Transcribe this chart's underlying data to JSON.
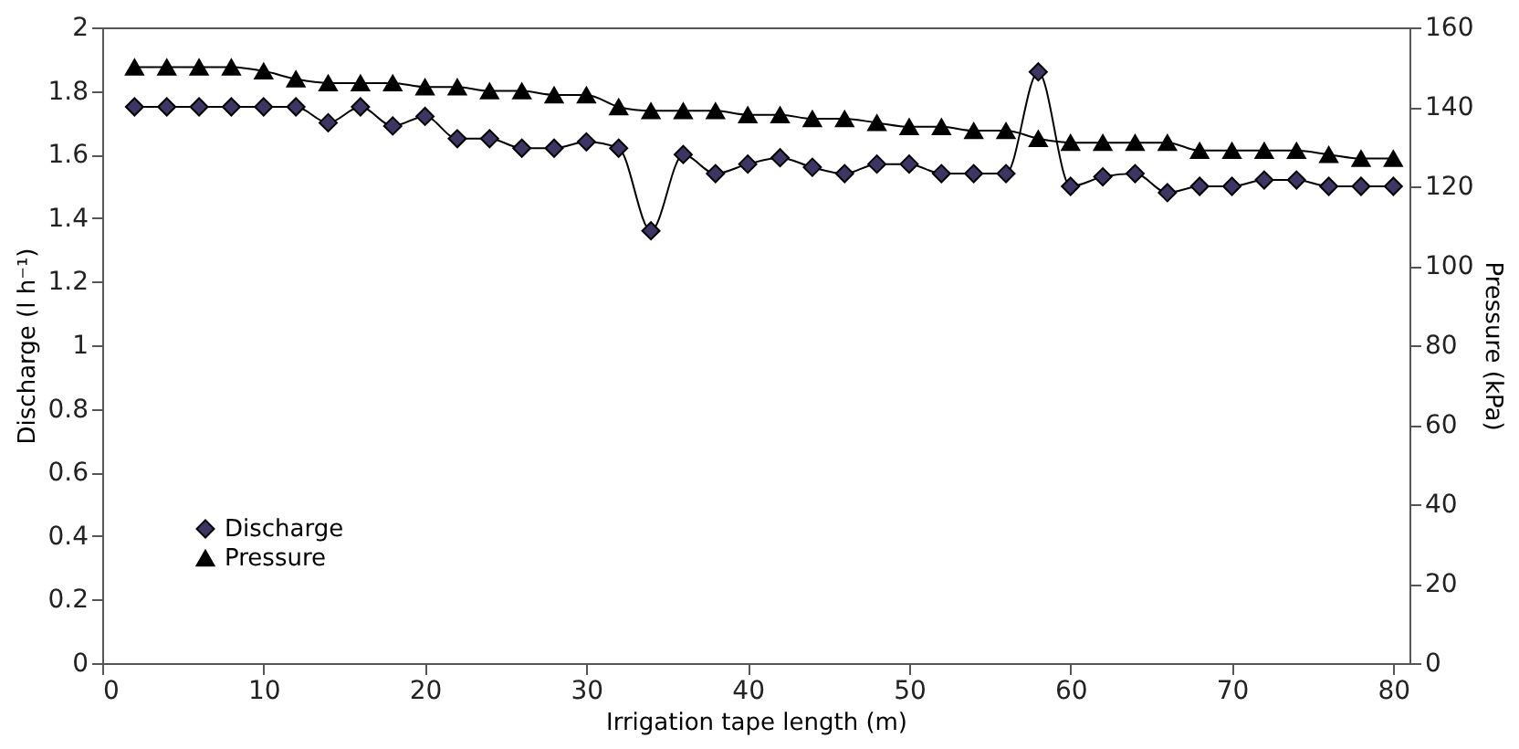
{
  "chart_data": {
    "type": "line",
    "xlabel": "Irrigation tape length (m)",
    "ylabel": "Discharge (l h⁻¹)",
    "y2label": "Pressure (kPa)",
    "x": [
      2,
      4,
      6,
      8,
      10,
      12,
      14,
      16,
      18,
      20,
      22,
      24,
      26,
      28,
      30,
      32,
      34,
      36,
      38,
      40,
      42,
      44,
      46,
      48,
      50,
      52,
      54,
      56,
      58,
      60,
      62,
      64,
      66,
      68,
      70,
      72,
      74,
      76,
      78,
      80
    ],
    "series": [
      {
        "name": "Discharge",
        "color": "#3d3563",
        "marker": "diamond",
        "values": [
          1.75,
          1.75,
          1.75,
          1.75,
          1.75,
          1.75,
          1.7,
          1.75,
          1.69,
          1.72,
          1.65,
          1.65,
          1.62,
          1.62,
          1.64,
          1.62,
          1.36,
          1.6,
          1.54,
          1.57,
          1.59,
          1.56,
          1.54,
          1.57,
          1.57,
          1.54,
          1.54,
          1.54,
          1.86,
          1.5,
          1.53,
          1.54,
          1.48,
          1.5,
          1.5,
          1.52,
          1.52,
          1.5,
          1.5,
          1.5
        ]
      },
      {
        "name": "Pressure",
        "color": "#000000",
        "marker": "triangle",
        "axis": "y2",
        "values": [
          150,
          150,
          150,
          150,
          149,
          147,
          146,
          146,
          146,
          145,
          145,
          144,
          144,
          143,
          143,
          140,
          139,
          139,
          139,
          138,
          138,
          137,
          137,
          136,
          135,
          135,
          134,
          134,
          132,
          131,
          131,
          131,
          131,
          129,
          129,
          129,
          129,
          128,
          127,
          127
        ]
      }
    ],
    "xlim": [
      0,
      81
    ],
    "xticks": [
      0,
      10,
      20,
      30,
      40,
      50,
      60,
      70,
      80
    ],
    "ylim": [
      0,
      2
    ],
    "yticks": [
      0,
      0.2,
      0.4,
      0.6,
      0.8,
      1,
      1.2,
      1.4,
      1.6,
      1.8,
      2
    ],
    "y2lim": [
      0,
      160
    ],
    "y2ticks": [
      0,
      20,
      40,
      60,
      80,
      100,
      120,
      140,
      160
    ],
    "legend": "bottom left",
    "grid": false,
    "line_style": "solid"
  }
}
